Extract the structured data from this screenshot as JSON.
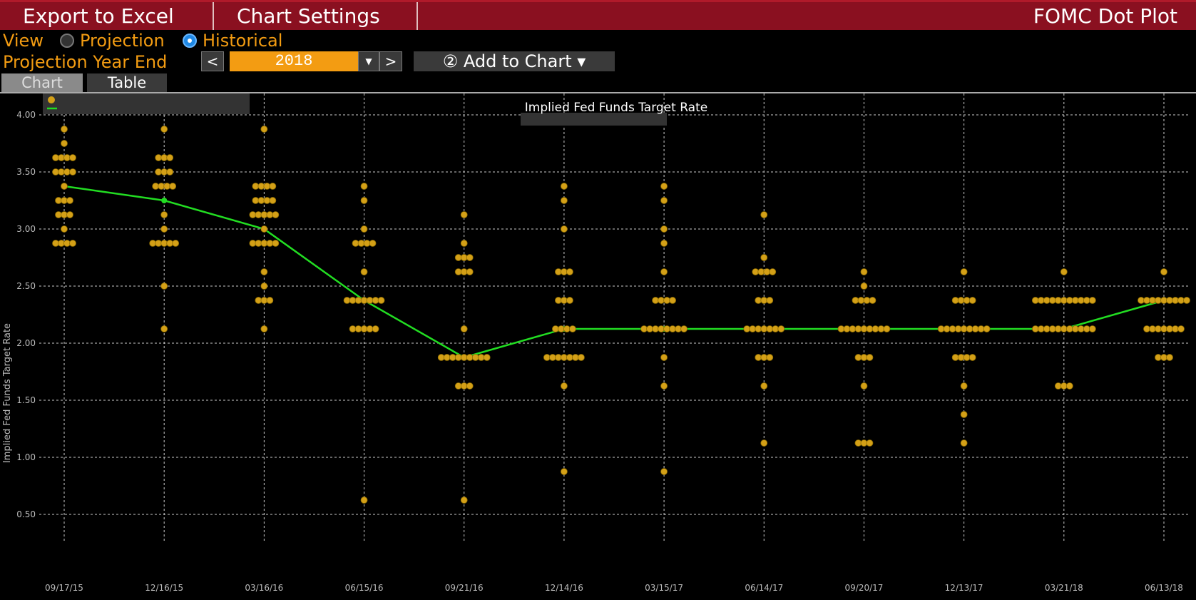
{
  "toolbar": {
    "export_label": "Export to Excel",
    "settings_label": "Chart Settings",
    "app_title": "FOMC Dot Plot"
  },
  "view": {
    "label": "View",
    "options": [
      "Projection",
      "Historical"
    ],
    "selected": "Historical"
  },
  "projection": {
    "label": "Projection Year End",
    "year": "2018",
    "prev": "<",
    "next": ">",
    "add_to_chart": "Add to Chart"
  },
  "tabs": [
    "Chart",
    "Table"
  ],
  "chart_data": {
    "type": "scatter",
    "title": "Implied Fed Funds Target Rate",
    "ylabel": "Implied Fed Funds Target Rate",
    "ylim": [
      0.4,
      4.15
    ],
    "yticks": [
      "4.00",
      "3.50",
      "3.00",
      "2.50",
      "2.00",
      "1.50",
      "1.00",
      "0.50"
    ],
    "grid": true,
    "categories": [
      "09/17/15",
      "12/16/15",
      "03/16/16",
      "06/15/16",
      "09/21/16",
      "12/14/16",
      "03/15/17",
      "06/14/17",
      "09/20/17",
      "12/13/17",
      "03/21/18",
      "06/13/18"
    ],
    "dots": [
      [
        [
          3.875,
          1
        ],
        [
          3.75,
          1
        ],
        [
          3.625,
          4
        ],
        [
          3.5,
          4
        ],
        [
          3.375,
          1
        ],
        [
          3.25,
          3
        ],
        [
          3.125,
          3
        ],
        [
          3.0,
          1
        ],
        [
          2.875,
          4
        ]
      ],
      [
        [
          3.875,
          1
        ],
        [
          3.625,
          3
        ],
        [
          3.5,
          3
        ],
        [
          3.375,
          4
        ],
        [
          3.125,
          1
        ],
        [
          3.0,
          1
        ],
        [
          2.875,
          5
        ],
        [
          2.5,
          1
        ],
        [
          2.125,
          1
        ]
      ],
      [
        [
          3.875,
          1
        ],
        [
          3.375,
          4
        ],
        [
          3.25,
          4
        ],
        [
          3.125,
          5
        ],
        [
          3.0,
          1
        ],
        [
          2.875,
          5
        ],
        [
          2.625,
          1
        ],
        [
          2.5,
          1
        ],
        [
          2.375,
          3
        ],
        [
          2.125,
          1
        ]
      ],
      [
        [
          3.375,
          1
        ],
        [
          3.25,
          1
        ],
        [
          3.0,
          1
        ],
        [
          2.875,
          4
        ],
        [
          2.625,
          1
        ],
        [
          2.375,
          7
        ],
        [
          2.125,
          5
        ],
        [
          0.625,
          1
        ]
      ],
      [
        [
          3.125,
          1
        ],
        [
          2.875,
          1
        ],
        [
          2.75,
          3
        ],
        [
          2.625,
          3
        ],
        [
          2.125,
          1
        ],
        [
          1.875,
          9
        ],
        [
          1.625,
          3
        ],
        [
          0.625,
          1
        ]
      ],
      [
        [
          3.375,
          1
        ],
        [
          3.25,
          1
        ],
        [
          3.0,
          1
        ],
        [
          2.625,
          3
        ],
        [
          2.375,
          3
        ],
        [
          2.125,
          4
        ],
        [
          1.875,
          7
        ],
        [
          1.625,
          1
        ],
        [
          0.875,
          1
        ]
      ],
      [
        [
          3.375,
          1
        ],
        [
          3.25,
          1
        ],
        [
          3.0,
          1
        ],
        [
          2.875,
          1
        ],
        [
          2.625,
          1
        ],
        [
          2.375,
          4
        ],
        [
          2.125,
          8
        ],
        [
          1.875,
          1
        ],
        [
          1.625,
          1
        ],
        [
          0.875,
          1
        ]
      ],
      [
        [
          3.125,
          1
        ],
        [
          2.75,
          1
        ],
        [
          2.625,
          4
        ],
        [
          2.375,
          3
        ],
        [
          2.125,
          7
        ],
        [
          1.875,
          3
        ],
        [
          1.625,
          1
        ],
        [
          1.125,
          1
        ]
      ],
      [
        [
          2.625,
          1
        ],
        [
          2.5,
          1
        ],
        [
          2.375,
          4
        ],
        [
          2.125,
          9
        ],
        [
          1.875,
          3
        ],
        [
          1.625,
          1
        ],
        [
          1.125,
          3
        ]
      ],
      [
        [
          2.625,
          1
        ],
        [
          2.375,
          4
        ],
        [
          2.125,
          9
        ],
        [
          1.875,
          4
        ],
        [
          1.625,
          1
        ],
        [
          1.375,
          1
        ],
        [
          1.125,
          1
        ]
      ],
      [
        [
          2.625,
          1
        ],
        [
          2.375,
          11
        ],
        [
          2.125,
          11
        ],
        [
          1.625,
          3
        ]
      ],
      [
        [
          2.625,
          1
        ],
        [
          2.375,
          9
        ],
        [
          2.125,
          7
        ],
        [
          1.875,
          3
        ]
      ]
    ],
    "median": [
      3.375,
      3.25,
      3.0,
      2.375,
      1.875,
      2.125,
      2.125,
      2.125,
      2.125,
      2.125,
      2.125,
      2.375
    ],
    "colors": {
      "dot": "#d4a017",
      "median": "#22dd22",
      "grid": "#cccccc"
    }
  }
}
